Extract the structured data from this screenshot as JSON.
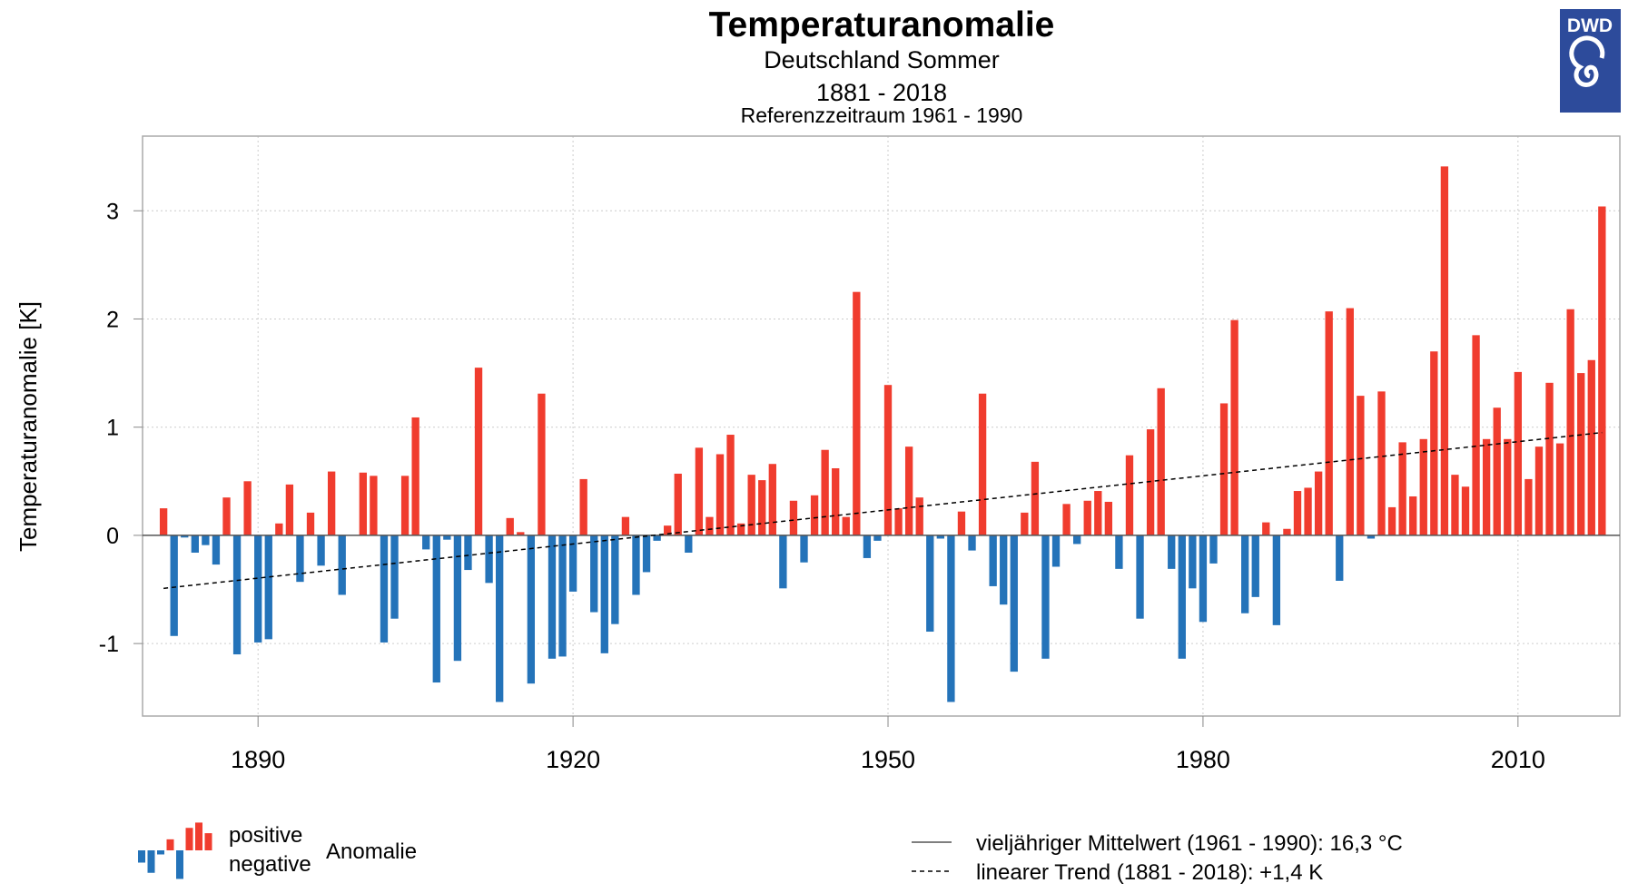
{
  "chart_data": {
    "type": "bar",
    "title": "Temperaturanomalie",
    "subtitle": "Deutschland Sommer",
    "period": "1881 - 2018",
    "reference": "Referenzzeitraum 1961 - 1990",
    "xlabel": "",
    "ylabel": "Temperaturanomalie [K]",
    "ylim": [
      -1.67,
      3.69
    ],
    "xlim": [
      1879,
      2019.7
    ],
    "yticks": [
      -1,
      0,
      1,
      2,
      3
    ],
    "ytick_labels": [
      "-1",
      "0",
      "1",
      "2",
      "3"
    ],
    "xticks": [
      1890,
      1920,
      1950,
      1980,
      2010
    ],
    "xtick_labels": [
      "1890",
      "1920",
      "1950",
      "1980",
      "2010"
    ],
    "grid": true,
    "start_year": 1881,
    "values": [
      0.25,
      -0.93,
      -0.02,
      -0.16,
      -0.09,
      -0.27,
      0.35,
      -1.1,
      0.5,
      -0.99,
      -0.96,
      0.11,
      0.47,
      -0.43,
      0.21,
      -0.28,
      0.59,
      -0.55,
      0.0,
      0.58,
      0.55,
      -0.99,
      -0.77,
      0.55,
      1.09,
      -0.13,
      -1.36,
      -0.04,
      -1.16,
      -0.32,
      1.55,
      -0.44,
      -1.54,
      0.16,
      0.03,
      -1.37,
      1.31,
      -1.14,
      -1.12,
      -0.52,
      0.52,
      -0.71,
      -1.09,
      -0.82,
      0.17,
      -0.55,
      -0.34,
      -0.05,
      0.09,
      0.57,
      -0.16,
      0.81,
      0.17,
      0.75,
      0.93,
      0.11,
      0.56,
      0.51,
      0.66,
      -0.49,
      0.32,
      -0.25,
      0.37,
      0.79,
      0.62,
      0.17,
      2.25,
      -0.21,
      -0.05,
      1.39,
      0.25,
      0.82,
      0.35,
      -0.89,
      -0.03,
      -1.54,
      0.22,
      -0.14,
      1.31,
      -0.47,
      -0.64,
      -1.26,
      0.21,
      0.68,
      -1.14,
      -0.29,
      0.29,
      -0.08,
      0.32,
      0.41,
      0.31,
      -0.31,
      0.74,
      -0.77,
      0.98,
      1.36,
      -0.31,
      -1.14,
      -0.49,
      -0.8,
      -0.26,
      1.22,
      1.99,
      -0.72,
      -0.57,
      0.12,
      -0.83,
      0.06,
      0.41,
      0.44,
      0.59,
      2.07,
      -0.42,
      2.1,
      1.29,
      -0.03,
      1.33,
      0.26,
      0.86,
      0.36,
      0.89,
      1.7,
      3.41,
      0.56,
      0.45,
      1.85,
      0.89,
      1.18,
      0.89,
      1.51,
      0.52,
      0.82,
      1.41,
      0.85,
      2.09,
      1.5,
      1.62,
      3.04
    ],
    "trend": {
      "start": -0.49,
      "end": 0.95
    },
    "colors": {
      "positive": "#f03c2e",
      "negative": "#2473b9",
      "trend": "#000000",
      "grid": "#cccccc"
    },
    "legend": {
      "positive": "positive",
      "negative": "negative",
      "anomaly": "Anomalie",
      "mean_line": "vieljähriger Mittelwert (1961 - 1990): 16,3 °C",
      "trend_line": "linearer Trend (1881 - 2018): +1,4 K",
      "placement": "bottom"
    }
  },
  "logo": {
    "text": "DWD",
    "color": "#2d4b9b"
  }
}
